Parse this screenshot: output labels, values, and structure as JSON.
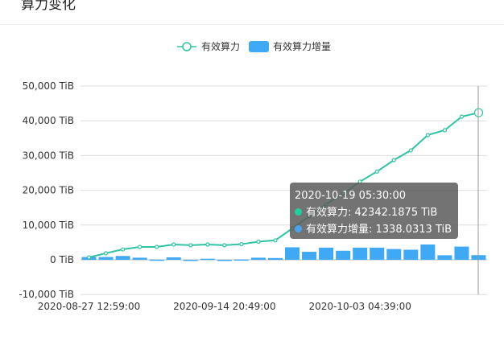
{
  "header": {
    "title": "算力变化"
  },
  "chart_data": {
    "type": "bar+line",
    "legend_position": "top-center",
    "legend": [
      "有效算力",
      "有效算力增量"
    ],
    "y_ticks": [
      "50,000 TiB",
      "40,000 TiB",
      "30,000 TiB",
      "20,000 TiB",
      "10,000 TiB",
      "0 TiB",
      "-10,000 TiB"
    ],
    "ylim": [
      -10000,
      50000
    ],
    "y_unit": "TiB",
    "grid": true,
    "x_tick_labels": [
      {
        "index": 0,
        "label": "2020-08-27 12:59:00"
      },
      {
        "index": 8,
        "label": "2020-09-14 20:49:00"
      },
      {
        "index": 16,
        "label": "2020-10-03 04:39:00"
      }
    ],
    "series": [
      {
        "name": "有效算力",
        "type": "line",
        "color": "#2ec4a4",
        "values": [
          700,
          1900,
          3000,
          3700,
          3700,
          4400,
          4200,
          4400,
          4200,
          4500,
          5200,
          5600,
          9000,
          12500,
          16000,
          19000,
          22500,
          25400,
          28700,
          31500,
          35900,
          37300,
          41200,
          42342.1875
        ]
      },
      {
        "name": "有效算力增量",
        "type": "bar",
        "color": "#3fa9f5",
        "values": [
          800,
          800,
          1100,
          600,
          50,
          700,
          -200,
          300,
          -200,
          100,
          600,
          500,
          3600,
          2300,
          3500,
          2600,
          3500,
          3500,
          3100,
          2900,
          4400,
          1300,
          3800,
          1338.0313
        ]
      }
    ],
    "tooltip": {
      "time": "2020-10-19 05:30:00",
      "line1": "有效算力: 42342.1875 TiB",
      "line2": "有效算力增量: 1338.0313 TiB",
      "dot1_color": "#1fd1a0",
      "dot2_color": "#4aa3ef"
    }
  }
}
